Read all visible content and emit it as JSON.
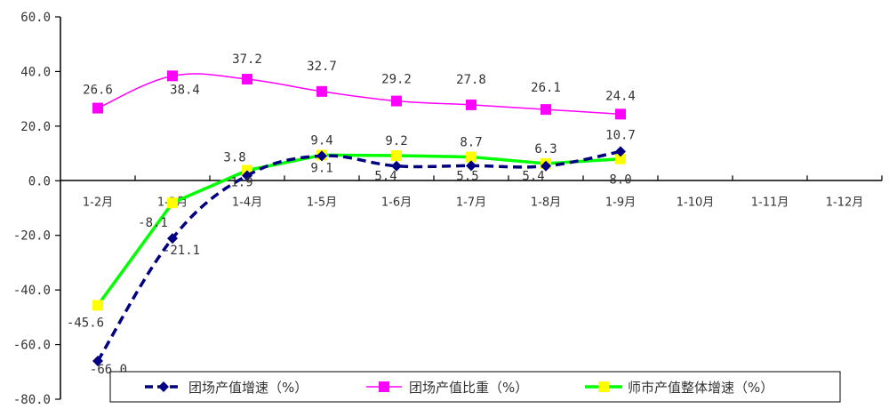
{
  "chart_data": {
    "type": "line",
    "title": "",
    "xlabel": "",
    "ylabel": "",
    "ylim": [
      -80,
      60
    ],
    "yticks": [
      "60.0",
      "40.0",
      "20.0",
      "0.0",
      "-20.0",
      "-40.0",
      "-60.0",
      "-80.0"
    ],
    "categories": [
      "1-2月",
      "1-3月",
      "1-4月",
      "1-5月",
      "1-6月",
      "1-7月",
      "1-8月",
      "1-9月",
      "1-10月",
      "1-11月",
      "1-12月"
    ],
    "grid": false,
    "legend_position": "bottom",
    "series": [
      {
        "name": "团场产值增速（%）",
        "color": "#000080",
        "style": "dashed",
        "marker": "diamond",
        "values": [
          -66.0,
          -21.1,
          1.9,
          9.1,
          5.4,
          5.5,
          5.4,
          10.7
        ],
        "labels": [
          "-66.0",
          "-21.1",
          "1.9",
          "9.1",
          "5.4",
          "5.5",
          "5.4",
          "10.7"
        ]
      },
      {
        "name": "团场产值比重（%）",
        "color": "#FF00FF",
        "style": "solid-smooth",
        "marker": "square",
        "values": [
          26.6,
          38.4,
          37.2,
          32.7,
          29.2,
          27.8,
          26.1,
          24.4
        ],
        "labels": [
          "26.6",
          "38.4",
          "37.2",
          "32.7",
          "29.2",
          "27.8",
          "26.1",
          "24.4"
        ]
      },
      {
        "name": "师市产值整体增速（%）",
        "color": "#00FF00",
        "marker_color": "#FFFF00",
        "style": "solid-thick",
        "marker": "square",
        "values": [
          -45.6,
          -8.1,
          3.8,
          9.4,
          9.2,
          8.7,
          6.3,
          8.0
        ],
        "labels": [
          "-45.6",
          "-8.1",
          "3.8",
          "9.4",
          "9.2",
          "8.7",
          "6.3",
          "8.0"
        ]
      }
    ]
  }
}
